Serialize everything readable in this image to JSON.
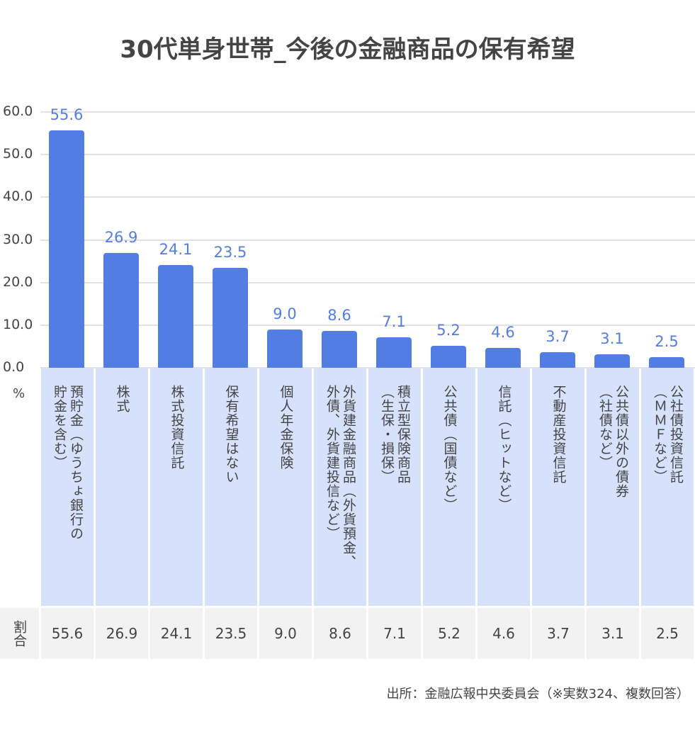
{
  "chart_data": {
    "type": "bar",
    "title": "30代単身世帯_今後の金融商品の保有希望",
    "ylabel": "%",
    "ylim": [
      0,
      60
    ],
    "yticks": [
      "0.0",
      "10.0",
      "20.0",
      "30.0",
      "40.0",
      "50.0",
      "60.0"
    ],
    "grid": true,
    "bar_color": "#527de2",
    "categories": [
      "預貯金（ゆうちょ銀行の\n貯金を含む）",
      "株式",
      "株式投資信託",
      "保有希望はない",
      "個人年金保険",
      "外貨建金融商品（外貨預金、\n外債、外貨建投信など）",
      "積立型保険商品\n（生保・損保）",
      "公共債（国債など）",
      "信託（ヒットなど）",
      "不動産投資信託",
      "公共債以外の債券\n（社債など）",
      "公社債投資信託\n（ＭＭＦなど）"
    ],
    "values": [
      55.6,
      26.9,
      24.1,
      23.5,
      9.0,
      8.6,
      7.1,
      5.2,
      4.6,
      3.7,
      3.1,
      2.5
    ],
    "value_labels": [
      "55.6",
      "26.9",
      "24.1",
      "23.5",
      "9.0",
      "8.6",
      "7.1",
      "5.2",
      "4.6",
      "3.7",
      "3.1",
      "2.5"
    ],
    "table_header": "割合",
    "source": "出所：金融広報中央委員会（※実数324、複数回答）"
  }
}
